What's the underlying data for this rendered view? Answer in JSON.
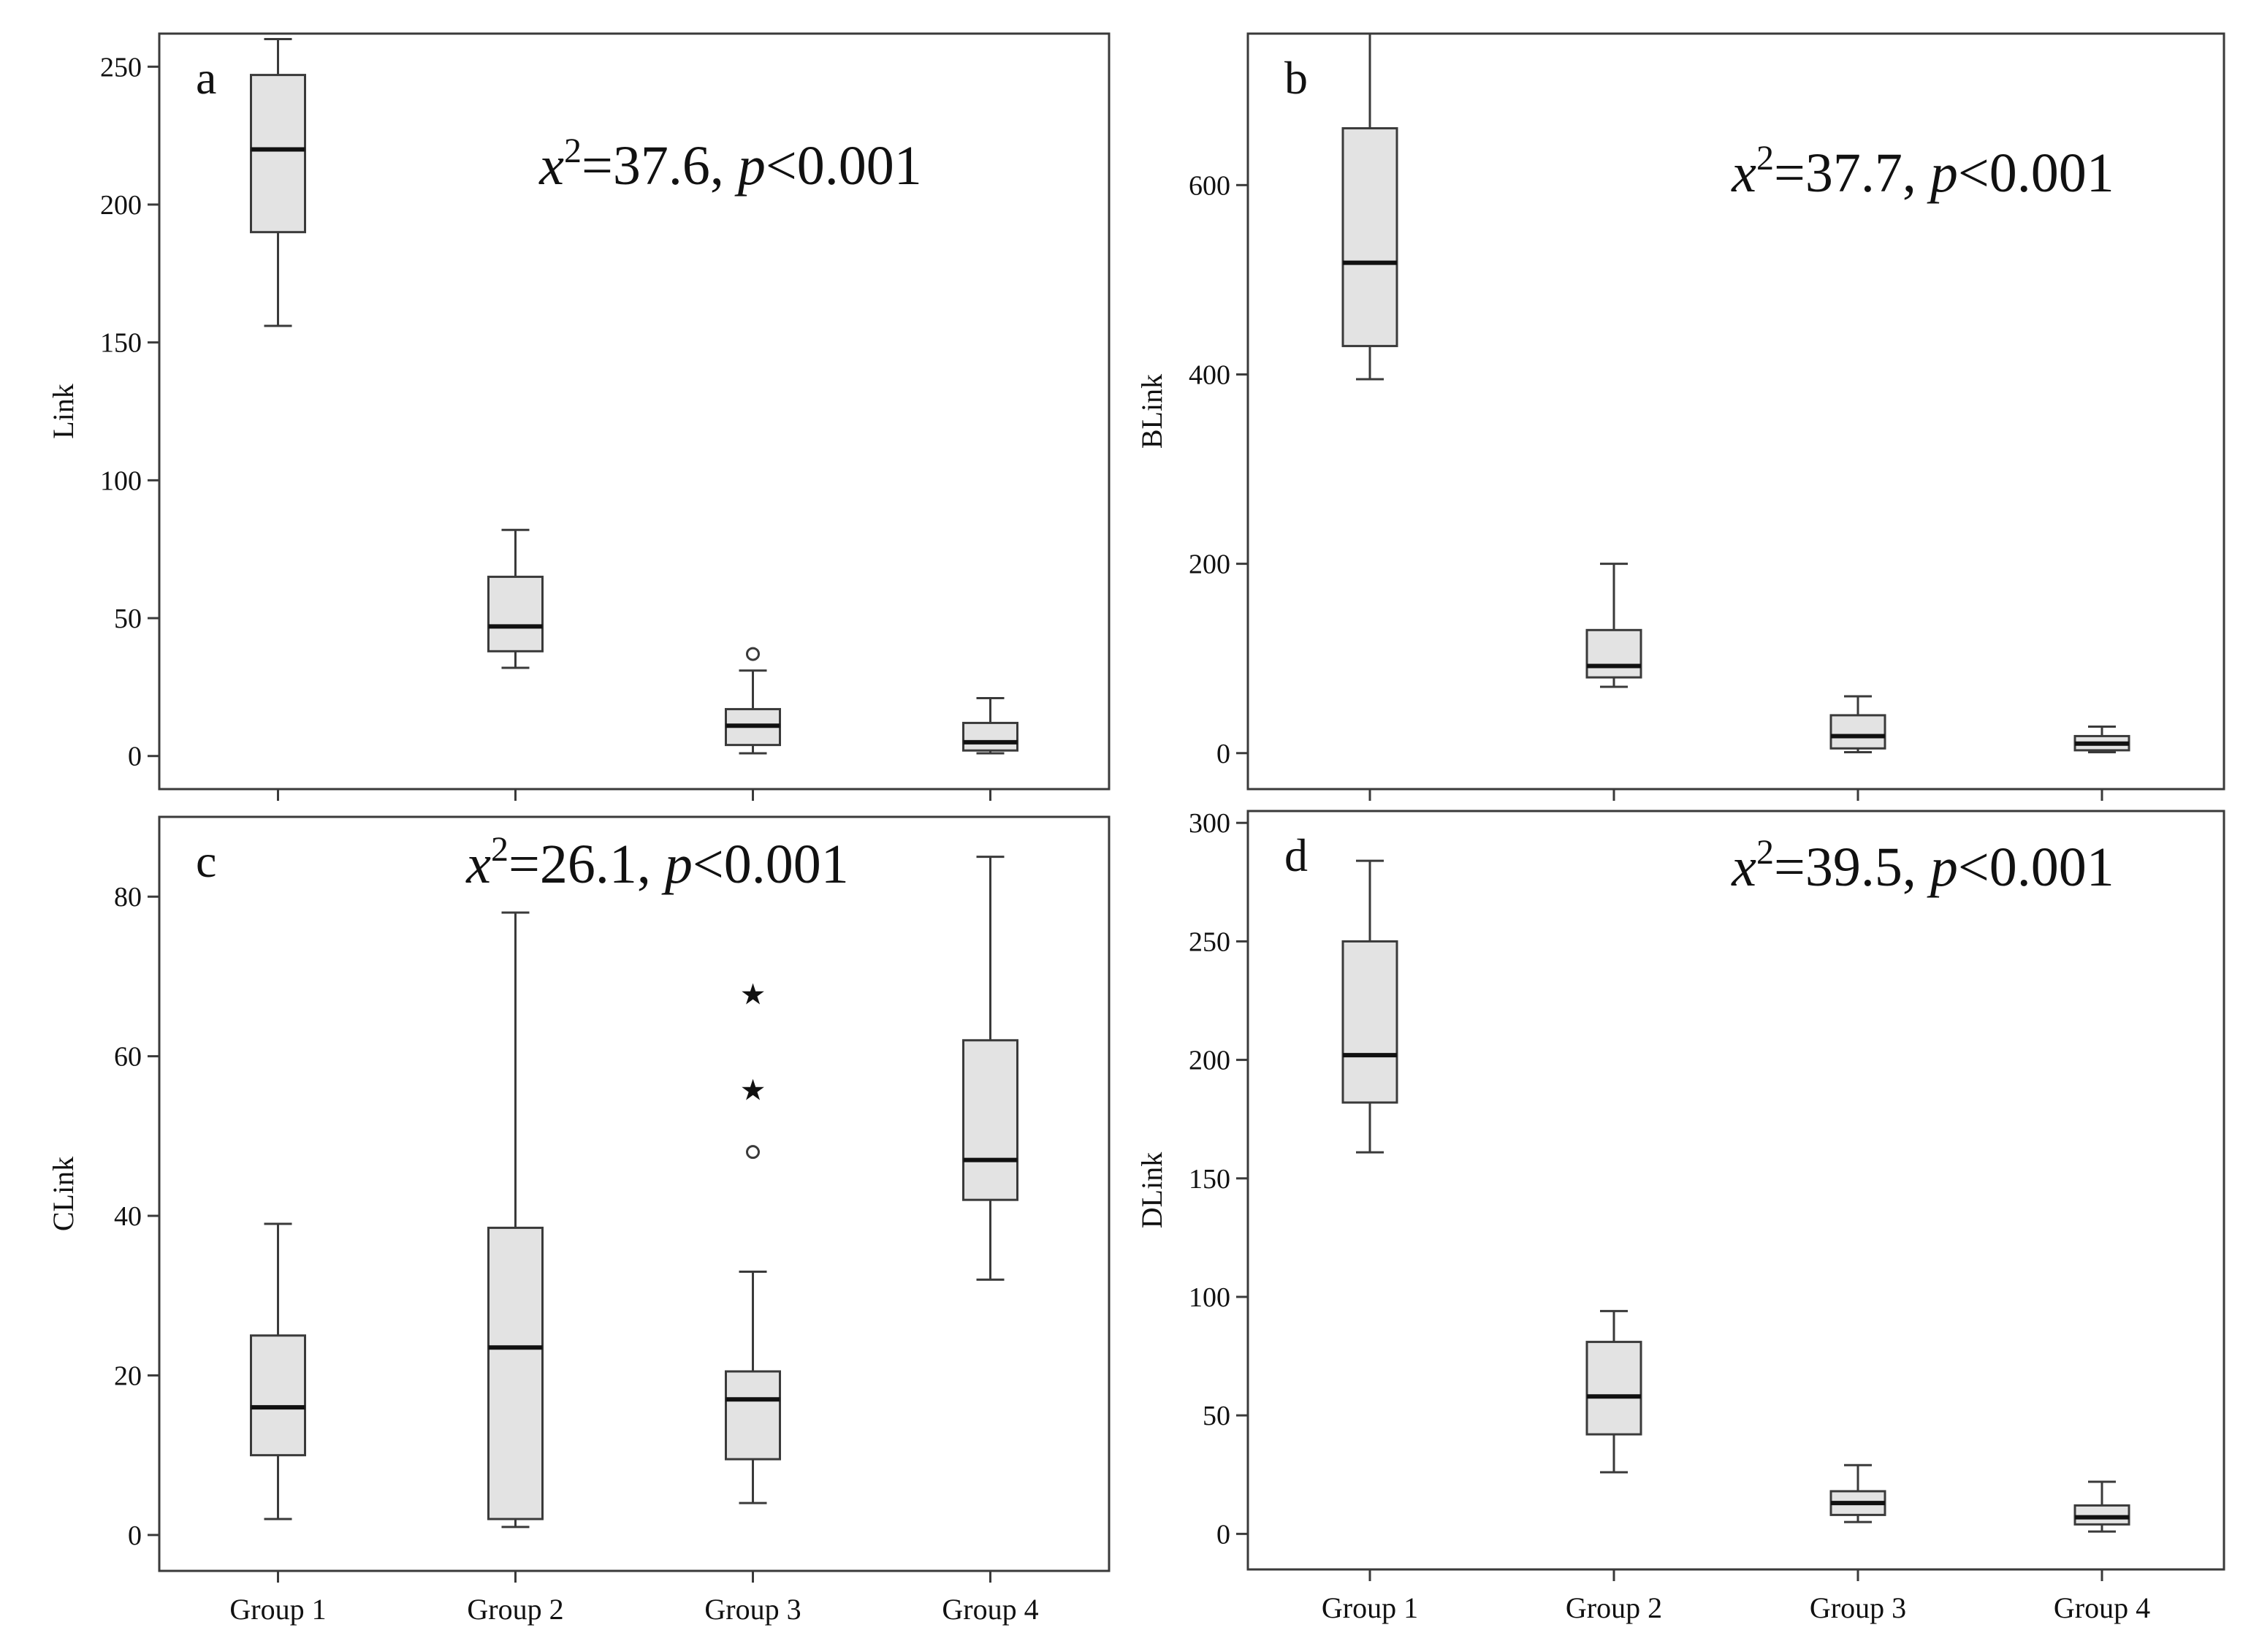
{
  "groups": [
    "Group 1",
    "Group 2",
    "Group 3",
    "Group 4"
  ],
  "colors": {
    "box_fill": "#e3e3e3",
    "stroke": "#3a3a3a",
    "median": "#111111",
    "background": "#ffffff"
  },
  "chart_data": [
    {
      "type": "box",
      "panel_letter": "a",
      "ylabel": "Link",
      "stat_prefix": "x",
      "stat_power": "2",
      "stat_value": "=37.6, ",
      "stat_p": "p",
      "stat_rest": "<0.001",
      "ylim": [
        -12,
        262
      ],
      "yticks": [
        0,
        50,
        100,
        150,
        200,
        250
      ],
      "show_xlabels": false,
      "boxes": [
        {
          "group": "Group 1",
          "min": 156,
          "q1": 190,
          "median": 220,
          "q3": 247,
          "max": 260,
          "outliers": [],
          "extremes": []
        },
        {
          "group": "Group 2",
          "min": 32,
          "q1": 38,
          "median": 47,
          "q3": 65,
          "max": 82,
          "outliers": [],
          "extremes": []
        },
        {
          "group": "Group 3",
          "min": 1,
          "q1": 4,
          "median": 11,
          "q3": 17,
          "max": 31,
          "outliers": [
            37
          ],
          "extremes": []
        },
        {
          "group": "Group 4",
          "min": 1,
          "q1": 2,
          "median": 5,
          "q3": 12,
          "max": 21,
          "outliers": [],
          "extremes": []
        }
      ]
    },
    {
      "type": "box",
      "panel_letter": "b",
      "ylabel": "BLink",
      "stat_prefix": "x",
      "stat_power": "2",
      "stat_value": "=37.7, ",
      "stat_p": "p",
      "stat_rest": "<0.001",
      "ylim": [
        -38,
        760
      ],
      "yticks": [
        0,
        200,
        400,
        600
      ],
      "show_xlabels": false,
      "boxes": [
        {
          "group": "Group 1",
          "min": 395,
          "q1": 430,
          "median": 518,
          "q3": 660,
          "max": 760,
          "outliers": [],
          "extremes": []
        },
        {
          "group": "Group 2",
          "min": 70,
          "q1": 80,
          "median": 92,
          "q3": 130,
          "max": 200,
          "outliers": [],
          "extremes": []
        },
        {
          "group": "Group 3",
          "min": 1,
          "q1": 5,
          "median": 18,
          "q3": 40,
          "max": 60,
          "outliers": [],
          "extremes": []
        },
        {
          "group": "Group 4",
          "min": 1,
          "q1": 3,
          "median": 10,
          "q3": 18,
          "max": 28,
          "outliers": [],
          "extremes": []
        }
      ]
    },
    {
      "type": "box",
      "panel_letter": "c",
      "ylabel": "CLink",
      "stat_prefix": "x",
      "stat_power": "2",
      "stat_value": "=26.1, ",
      "stat_p": "p",
      "stat_rest": "<0.001",
      "ylim": [
        -4.5,
        90
      ],
      "yticks": [
        0,
        20,
        40,
        60,
        80
      ],
      "show_xlabels": true,
      "boxes": [
        {
          "group": "Group 1",
          "min": 2,
          "q1": 10,
          "median": 16,
          "q3": 25,
          "max": 39,
          "outliers": [],
          "extremes": []
        },
        {
          "group": "Group 2",
          "min": 1,
          "q1": 2,
          "median": 23.5,
          "q3": 38.5,
          "max": 78,
          "outliers": [],
          "extremes": []
        },
        {
          "group": "Group 3",
          "min": 4,
          "q1": 9.5,
          "median": 17,
          "q3": 20.5,
          "max": 33,
          "outliers": [
            48
          ],
          "extremes": [
            56,
            68
          ]
        },
        {
          "group": "Group 4",
          "min": 32,
          "q1": 42,
          "median": 47,
          "q3": 62,
          "max": 85,
          "outliers": [],
          "extremes": []
        }
      ]
    },
    {
      "type": "box",
      "panel_letter": "d",
      "ylabel": "DLink",
      "stat_prefix": "x",
      "stat_power": "2",
      "stat_value": "=39.5, ",
      "stat_p": "p",
      "stat_rest": "<0.001",
      "ylim": [
        -15,
        305
      ],
      "yticks": [
        0,
        50,
        100,
        150,
        200,
        250,
        300
      ],
      "show_xlabels": true,
      "boxes": [
        {
          "group": "Group 1",
          "min": 161,
          "q1": 182,
          "median": 202,
          "q3": 250,
          "max": 284,
          "outliers": [],
          "extremes": []
        },
        {
          "group": "Group 2",
          "min": 26,
          "q1": 42,
          "median": 58,
          "q3": 81,
          "max": 94,
          "outliers": [],
          "extremes": []
        },
        {
          "group": "Group 3",
          "min": 5,
          "q1": 8,
          "median": 13,
          "q3": 18,
          "max": 29,
          "outliers": [],
          "extremes": []
        },
        {
          "group": "Group 4",
          "min": 1,
          "q1": 4,
          "median": 7,
          "q3": 12,
          "max": 22,
          "outliers": [],
          "extremes": []
        }
      ]
    }
  ]
}
